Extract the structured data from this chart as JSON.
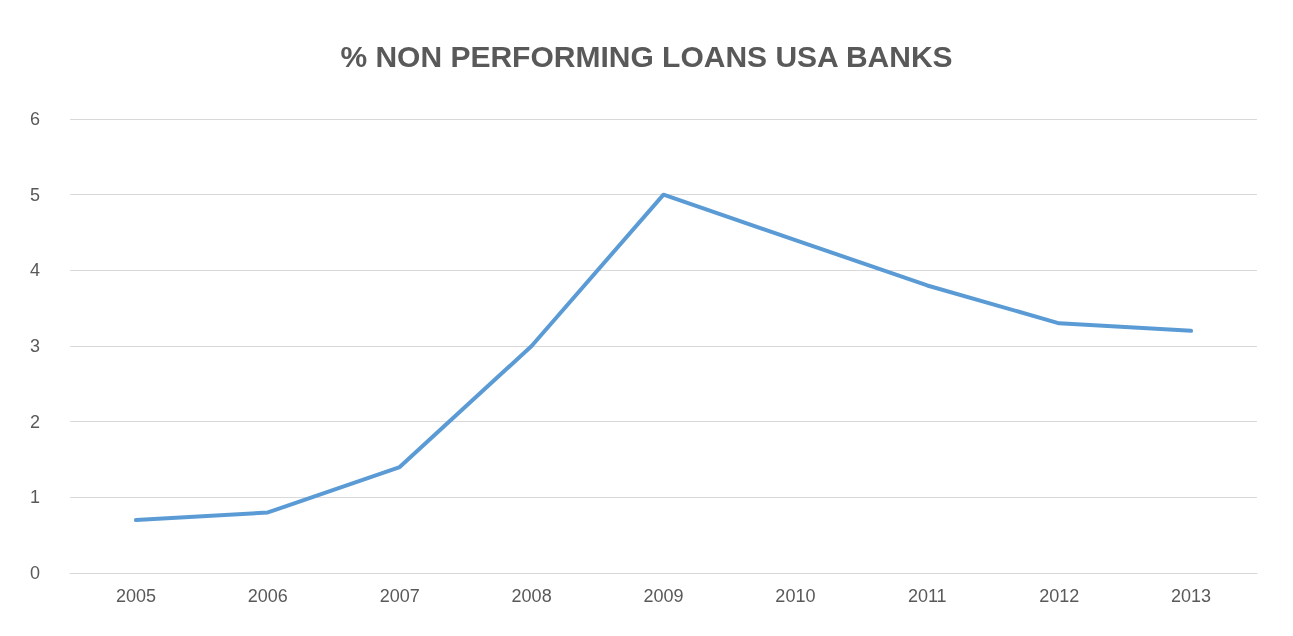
{
  "chart_data": {
    "type": "line",
    "title": "% NON PERFORMING LOANS USA BANKS",
    "categories": [
      "2005",
      "2006",
      "2007",
      "2008",
      "2009",
      "2010",
      "2011",
      "2012",
      "2013"
    ],
    "series": [
      {
        "color": "#5b9bd5",
        "values": [
          0.7,
          0.8,
          1.4,
          3.0,
          5.0,
          4.4,
          3.8,
          3.3,
          3.2
        ]
      }
    ],
    "ylim": [
      0,
      6
    ],
    "yticks": [
      0,
      1,
      2,
      3,
      4,
      5,
      6
    ],
    "grid": "y",
    "marker": "none",
    "line_style": "solid"
  }
}
